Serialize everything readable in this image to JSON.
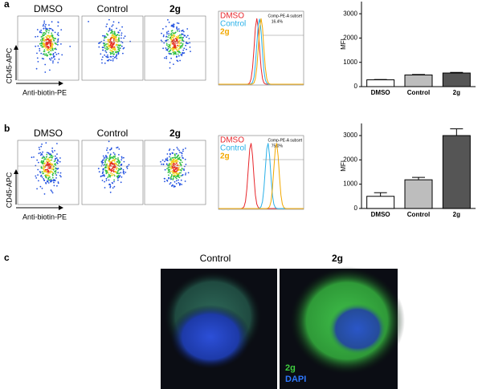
{
  "a": {
    "label": "a",
    "flow": {
      "titles": [
        "DMSO",
        "Control",
        "2g"
      ],
      "y_label": "CD45-APC",
      "x_label": "Anti-biotin-PE"
    },
    "histogram": {
      "legend": [
        {
          "name": "DMSO",
          "color": "#e8262b"
        },
        {
          "name": "Control",
          "color": "#29b0e8"
        },
        {
          "name": "2g",
          "color": "#f2a800"
        }
      ],
      "gate": "Comp-PE-A subset",
      "gate_value": "16.4%"
    },
    "chart_data": {
      "type": "bar",
      "categories": [
        "DMSO",
        "Control",
        "2g"
      ],
      "values": [
        280,
        480,
        560
      ],
      "errors": [
        15,
        20,
        25
      ],
      "colors": [
        "#ffffff",
        "#bdbdbd",
        "#555555"
      ],
      "y_label": "MFI",
      "ylim": [
        0,
        3500
      ],
      "yticks": [
        0,
        1000,
        2000,
        3000
      ]
    }
  },
  "b": {
    "label": "b",
    "flow": {
      "titles": [
        "DMSO",
        "Control",
        "2g"
      ],
      "y_label": "CD45-APC",
      "x_label": "Anti-biotin-PE"
    },
    "histogram": {
      "legend": [
        {
          "name": "DMSO",
          "color": "#e8262b"
        },
        {
          "name": "Control",
          "color": "#29b0e8"
        },
        {
          "name": "2g",
          "color": "#f2a800"
        }
      ],
      "gate": "Comp-PE-A subset",
      "gate_value": "75.0%"
    },
    "chart_data": {
      "type": "bar",
      "categories": [
        "DMSO",
        "Control",
        "2g"
      ],
      "values": [
        500,
        1180,
        3000
      ],
      "errors": [
        150,
        100,
        280
      ],
      "colors": [
        "#ffffff",
        "#bdbdbd",
        "#555555"
      ],
      "y_label": "MFI",
      "ylim": [
        0,
        3500
      ],
      "yticks": [
        0,
        1000,
        2000,
        3000
      ]
    }
  },
  "c": {
    "label": "c",
    "titles": [
      "Control",
      "2g"
    ],
    "legend": [
      {
        "name": "2g",
        "color": "#3fcf3f"
      },
      {
        "name": "DAPI",
        "color": "#2e78ff"
      }
    ]
  }
}
